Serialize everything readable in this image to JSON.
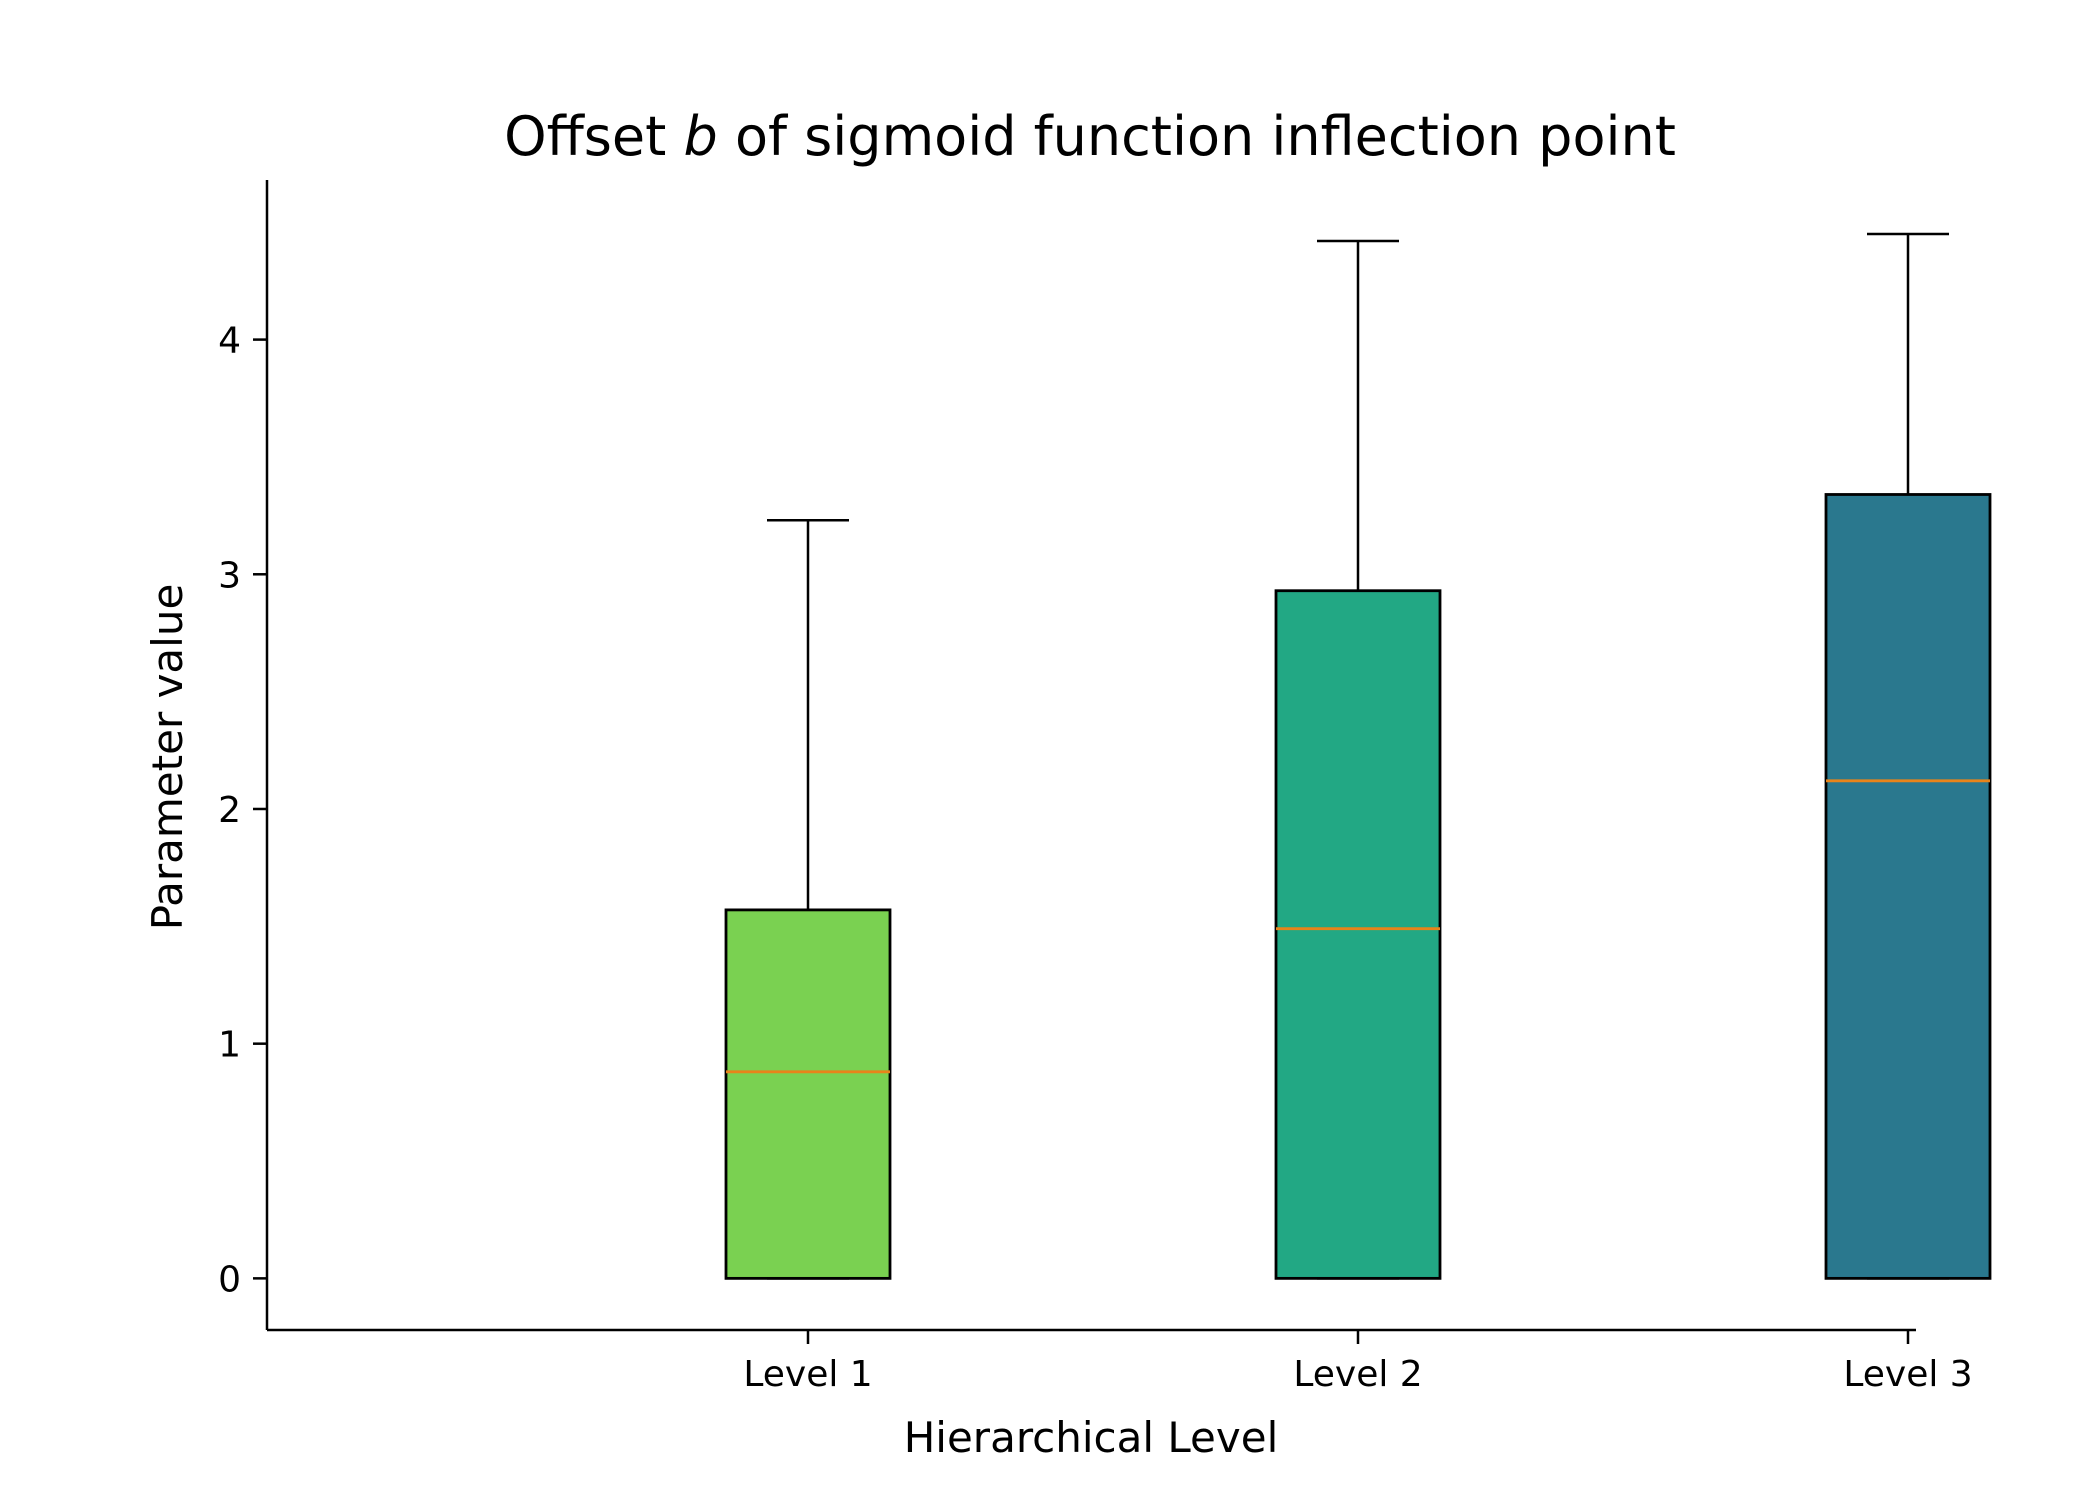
{
  "chart_data": {
    "type": "box",
    "title_prefix": "Offset ",
    "title_var": "b",
    "title_suffix": " of sigmoid function inflection point",
    "xlabel": "Hierarchical Level",
    "ylabel": "Parameter value",
    "ylim": [
      -0.22,
      4.68
    ],
    "yticks": [
      0,
      1,
      2,
      3,
      4
    ],
    "grid": false,
    "categories": [
      "Level 1",
      "Level 2",
      "Level 3"
    ],
    "boxes": [
      {
        "category": "Level 1",
        "whislo": 0.0,
        "q1": 0.0,
        "med": 0.88,
        "q3": 1.57,
        "whishi": 3.23,
        "color": "#7ad151"
      },
      {
        "category": "Level 2",
        "whislo": 0.0,
        "q1": 0.0,
        "med": 1.49,
        "q3": 2.93,
        "whishi": 4.42,
        "color": "#22a884"
      },
      {
        "category": "Level 3",
        "whislo": 0.0,
        "q1": 0.0,
        "med": 2.12,
        "q3": 3.34,
        "whishi": 4.45,
        "color": "#2a788e"
      }
    ],
    "median_color": "#e8841a"
  }
}
